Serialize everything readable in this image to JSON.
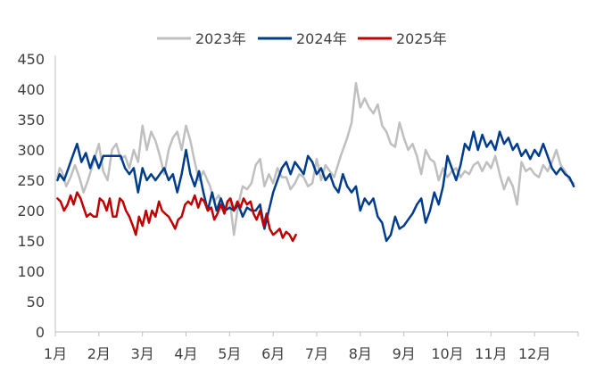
{
  "chart_data": {
    "type": "line",
    "title": "",
    "xlabel": "",
    "ylabel": "",
    "ylim": [
      0,
      450
    ],
    "yticks": [
      0,
      50,
      100,
      150,
      200,
      250,
      300,
      350,
      400,
      450
    ],
    "x_tick_labels": [
      "1月",
      "2月",
      "3月",
      "4月",
      "5月",
      "6月",
      "7月",
      "8月",
      "9月",
      "10月",
      "11月",
      "12月"
    ],
    "legend_position": "top-center",
    "grid": false,
    "series": [
      {
        "name": "2023年",
        "color": "#bfbfbf",
        "points": [
          [
            1.05,
            255
          ],
          [
            1.1,
            270
          ],
          [
            1.15,
            265
          ],
          [
            1.25,
            240
          ],
          [
            1.35,
            255
          ],
          [
            1.45,
            275
          ],
          [
            1.55,
            255
          ],
          [
            1.65,
            230
          ],
          [
            1.75,
            250
          ],
          [
            1.9,
            285
          ],
          [
            2.0,
            310
          ],
          [
            2.1,
            265
          ],
          [
            2.2,
            250
          ],
          [
            2.3,
            300
          ],
          [
            2.4,
            310
          ],
          [
            2.5,
            285
          ],
          [
            2.6,
            290
          ],
          [
            2.7,
            270
          ],
          [
            2.8,
            300
          ],
          [
            2.9,
            280
          ],
          [
            3.0,
            340
          ],
          [
            3.1,
            300
          ],
          [
            3.2,
            330
          ],
          [
            3.3,
            315
          ],
          [
            3.4,
            290
          ],
          [
            3.5,
            260
          ],
          [
            3.6,
            300
          ],
          [
            3.7,
            320
          ],
          [
            3.8,
            330
          ],
          [
            3.9,
            300
          ],
          [
            4.0,
            340
          ],
          [
            4.1,
            315
          ],
          [
            4.2,
            280
          ],
          [
            4.3,
            250
          ],
          [
            4.4,
            265
          ],
          [
            4.55,
            240
          ],
          [
            4.65,
            215
          ],
          [
            4.75,
            225
          ],
          [
            4.9,
            200
          ],
          [
            5.0,
            220
          ],
          [
            5.1,
            160
          ],
          [
            5.2,
            210
          ],
          [
            5.3,
            240
          ],
          [
            5.4,
            235
          ],
          [
            5.5,
            245
          ],
          [
            5.6,
            275
          ],
          [
            5.7,
            285
          ],
          [
            5.8,
            240
          ],
          [
            5.9,
            260
          ],
          [
            6.0,
            245
          ],
          [
            6.1,
            270
          ],
          [
            6.2,
            255
          ],
          [
            6.3,
            255
          ],
          [
            6.4,
            235
          ],
          [
            6.5,
            245
          ],
          [
            6.6,
            260
          ],
          [
            6.7,
            255
          ],
          [
            6.8,
            240
          ],
          [
            6.9,
            245
          ],
          [
            7.0,
            285
          ],
          [
            7.1,
            250
          ],
          [
            7.2,
            275
          ],
          [
            7.3,
            265
          ],
          [
            7.4,
            255
          ],
          [
            7.55,
            290
          ],
          [
            7.7,
            320
          ],
          [
            7.8,
            345
          ],
          [
            7.9,
            410
          ],
          [
            8.0,
            370
          ],
          [
            8.1,
            385
          ],
          [
            8.2,
            370
          ],
          [
            8.3,
            360
          ],
          [
            8.4,
            375
          ],
          [
            8.5,
            340
          ],
          [
            8.6,
            330
          ],
          [
            8.7,
            310
          ],
          [
            8.8,
            305
          ],
          [
            8.9,
            345
          ],
          [
            9.0,
            320
          ],
          [
            9.1,
            300
          ],
          [
            9.2,
            310
          ],
          [
            9.3,
            290
          ],
          [
            9.4,
            260
          ],
          [
            9.5,
            300
          ],
          [
            9.6,
            285
          ],
          [
            9.7,
            280
          ],
          [
            9.8,
            250
          ],
          [
            9.9,
            270
          ],
          [
            10.0,
            255
          ],
          [
            10.1,
            265
          ],
          [
            10.2,
            270
          ],
          [
            10.3,
            255
          ],
          [
            10.4,
            265
          ],
          [
            10.5,
            260
          ],
          [
            10.6,
            275
          ],
          [
            10.7,
            280
          ],
          [
            10.8,
            265
          ],
          [
            10.9,
            280
          ],
          [
            11.0,
            270
          ],
          [
            11.1,
            290
          ],
          [
            11.2,
            260
          ],
          [
            11.3,
            235
          ],
          [
            11.4,
            255
          ],
          [
            11.5,
            240
          ],
          [
            11.6,
            210
          ],
          [
            11.7,
            280
          ],
          [
            11.8,
            265
          ],
          [
            11.9,
            270
          ],
          [
            12.0,
            260
          ],
          [
            12.1,
            255
          ],
          [
            12.2,
            275
          ],
          [
            12.3,
            265
          ],
          [
            12.4,
            280
          ],
          [
            12.5,
            300
          ],
          [
            12.6,
            275
          ],
          [
            12.7,
            265
          ],
          [
            12.8,
            250
          ],
          [
            12.9,
            245
          ]
        ]
      },
      {
        "name": "2024年",
        "color": "#003c8c",
        "points": [
          [
            1.05,
            250
          ],
          [
            1.1,
            260
          ],
          [
            1.2,
            250
          ],
          [
            1.3,
            270
          ],
          [
            1.4,
            290
          ],
          [
            1.5,
            310
          ],
          [
            1.6,
            280
          ],
          [
            1.7,
            295
          ],
          [
            1.8,
            270
          ],
          [
            1.9,
            290
          ],
          [
            2.0,
            270
          ],
          [
            2.1,
            290
          ],
          [
            2.2,
            290
          ],
          [
            2.3,
            290
          ],
          [
            2.4,
            290
          ],
          [
            2.5,
            290
          ],
          [
            2.6,
            270
          ],
          [
            2.7,
            260
          ],
          [
            2.8,
            270
          ],
          [
            2.9,
            230
          ],
          [
            3.0,
            270
          ],
          [
            3.1,
            250
          ],
          [
            3.2,
            260
          ],
          [
            3.3,
            250
          ],
          [
            3.4,
            260
          ],
          [
            3.5,
            270
          ],
          [
            3.6,
            250
          ],
          [
            3.7,
            260
          ],
          [
            3.8,
            230
          ],
          [
            3.9,
            260
          ],
          [
            4.0,
            300
          ],
          [
            4.1,
            260
          ],
          [
            4.2,
            240
          ],
          [
            4.3,
            265
          ],
          [
            4.4,
            230
          ],
          [
            4.5,
            200
          ],
          [
            4.6,
            230
          ],
          [
            4.7,
            200
          ],
          [
            4.8,
            220
          ],
          [
            4.9,
            200
          ],
          [
            5.0,
            205
          ],
          [
            5.1,
            200
          ],
          [
            5.2,
            210
          ],
          [
            5.3,
            190
          ],
          [
            5.4,
            205
          ],
          [
            5.5,
            200
          ],
          [
            5.6,
            200
          ],
          [
            5.7,
            210
          ],
          [
            5.8,
            170
          ],
          [
            5.9,
            200
          ],
          [
            6.0,
            230
          ],
          [
            6.1,
            250
          ],
          [
            6.2,
            270
          ],
          [
            6.3,
            280
          ],
          [
            6.4,
            260
          ],
          [
            6.5,
            280
          ],
          [
            6.6,
            270
          ],
          [
            6.7,
            260
          ],
          [
            6.8,
            290
          ],
          [
            6.9,
            280
          ],
          [
            7.0,
            260
          ],
          [
            7.1,
            270
          ],
          [
            7.2,
            250
          ],
          [
            7.3,
            260
          ],
          [
            7.4,
            240
          ],
          [
            7.5,
            230
          ],
          [
            7.6,
            260
          ],
          [
            7.7,
            240
          ],
          [
            7.8,
            230
          ],
          [
            7.9,
            240
          ],
          [
            8.0,
            200
          ],
          [
            8.1,
            220
          ],
          [
            8.2,
            210
          ],
          [
            8.3,
            220
          ],
          [
            8.4,
            190
          ],
          [
            8.5,
            180
          ],
          [
            8.6,
            150
          ],
          [
            8.7,
            160
          ],
          [
            8.8,
            190
          ],
          [
            8.9,
            170
          ],
          [
            9.0,
            175
          ],
          [
            9.1,
            185
          ],
          [
            9.2,
            195
          ],
          [
            9.3,
            210
          ],
          [
            9.4,
            220
          ],
          [
            9.5,
            180
          ],
          [
            9.6,
            200
          ],
          [
            9.7,
            230
          ],
          [
            9.8,
            210
          ],
          [
            9.9,
            240
          ],
          [
            10.0,
            290
          ],
          [
            10.1,
            270
          ],
          [
            10.2,
            250
          ],
          [
            10.3,
            275
          ],
          [
            10.4,
            310
          ],
          [
            10.5,
            300
          ],
          [
            10.6,
            330
          ],
          [
            10.7,
            300
          ],
          [
            10.8,
            325
          ],
          [
            10.9,
            305
          ],
          [
            11.0,
            315
          ],
          [
            11.1,
            300
          ],
          [
            11.2,
            330
          ],
          [
            11.3,
            310
          ],
          [
            11.4,
            320
          ],
          [
            11.5,
            300
          ],
          [
            11.6,
            310
          ],
          [
            11.7,
            290
          ],
          [
            11.8,
            300
          ],
          [
            11.9,
            285
          ],
          [
            12.0,
            300
          ],
          [
            12.1,
            290
          ],
          [
            12.2,
            310
          ],
          [
            12.3,
            290
          ],
          [
            12.4,
            270
          ],
          [
            12.5,
            260
          ],
          [
            12.6,
            270
          ],
          [
            12.7,
            260
          ],
          [
            12.8,
            255
          ],
          [
            12.9,
            240
          ]
        ]
      },
      {
        "name": "2025年",
        "color": "#c00000",
        "points": [
          [
            1.05,
            220
          ],
          [
            1.12,
            215
          ],
          [
            1.2,
            200
          ],
          [
            1.28,
            210
          ],
          [
            1.35,
            225
          ],
          [
            1.42,
            210
          ],
          [
            1.5,
            230
          ],
          [
            1.58,
            220
          ],
          [
            1.65,
            205
          ],
          [
            1.72,
            190
          ],
          [
            1.8,
            195
          ],
          [
            1.88,
            190
          ],
          [
            1.95,
            190
          ],
          [
            2.02,
            220
          ],
          [
            2.1,
            215
          ],
          [
            2.18,
            200
          ],
          [
            2.25,
            220
          ],
          [
            2.32,
            190
          ],
          [
            2.4,
            190
          ],
          [
            2.48,
            220
          ],
          [
            2.55,
            215
          ],
          [
            2.62,
            200
          ],
          [
            2.7,
            190
          ],
          [
            2.78,
            175
          ],
          [
            2.85,
            160
          ],
          [
            2.92,
            190
          ],
          [
            3.0,
            175
          ],
          [
            3.08,
            200
          ],
          [
            3.15,
            180
          ],
          [
            3.22,
            200
          ],
          [
            3.3,
            190
          ],
          [
            3.38,
            215
          ],
          [
            3.45,
            200
          ],
          [
            3.52,
            195
          ],
          [
            3.6,
            190
          ],
          [
            3.68,
            180
          ],
          [
            3.75,
            170
          ],
          [
            3.82,
            185
          ],
          [
            3.9,
            190
          ],
          [
            3.98,
            210
          ],
          [
            4.05,
            215
          ],
          [
            4.12,
            210
          ],
          [
            4.2,
            225
          ],
          [
            4.28,
            205
          ],
          [
            4.35,
            220
          ],
          [
            4.42,
            215
          ],
          [
            4.5,
            200
          ],
          [
            4.58,
            205
          ],
          [
            4.65,
            185
          ],
          [
            4.72,
            195
          ],
          [
            4.8,
            210
          ],
          [
            4.88,
            195
          ],
          [
            4.95,
            215
          ],
          [
            5.02,
            220
          ],
          [
            5.1,
            200
          ],
          [
            5.18,
            215
          ],
          [
            5.25,
            205
          ],
          [
            5.32,
            220
          ],
          [
            5.4,
            210
          ],
          [
            5.48,
            215
          ],
          [
            5.55,
            195
          ],
          [
            5.62,
            185
          ],
          [
            5.7,
            200
          ],
          [
            5.78,
            175
          ],
          [
            5.85,
            195
          ],
          [
            5.92,
            170
          ],
          [
            6.0,
            160
          ],
          [
            6.08,
            165
          ],
          [
            6.15,
            170
          ],
          [
            6.22,
            155
          ],
          [
            6.3,
            165
          ],
          [
            6.38,
            160
          ],
          [
            6.45,
            150
          ],
          [
            6.52,
            160
          ]
        ]
      }
    ]
  }
}
